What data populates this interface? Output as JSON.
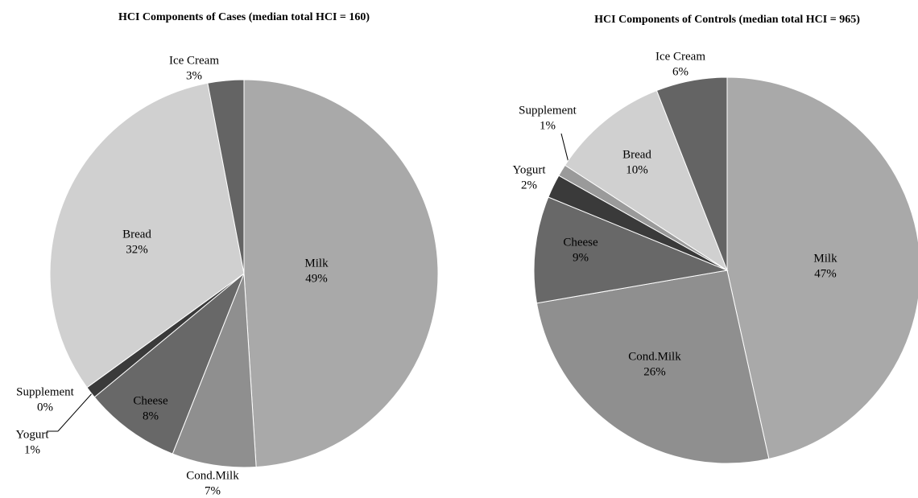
{
  "chart_data": [
    {
      "type": "pie",
      "title": "HCI Components of Cases (median total HCI = 160)",
      "categories": [
        "Milk",
        "Cond.Milk",
        "Cheese",
        "Yogurt",
        "Supplement",
        "Bread",
        "Ice Cream"
      ],
      "values": [
        49,
        7,
        8,
        1,
        0,
        32,
        3
      ],
      "value_labels": [
        "49%",
        "7%",
        "8%",
        "1%",
        "0%",
        "32%",
        "3%"
      ],
      "colors": [
        "#a9a9a9",
        "#8f8f8f",
        "#686868",
        "#3a3a3a",
        "#9a9a9a",
        "#d0d0d0",
        "#646464"
      ]
    },
    {
      "type": "pie",
      "title": "HCI Components of Controls (median total HCI = 965)",
      "categories": [
        "Milk",
        "Cond.Milk",
        "Cheese",
        "Yogurt",
        "Supplement",
        "Bread",
        "Ice Cream"
      ],
      "values": [
        47,
        26,
        9,
        2,
        1,
        10,
        6
      ],
      "value_labels": [
        "47%",
        "26%",
        "9%",
        "2%",
        "1%",
        "10%",
        "6%"
      ],
      "colors": [
        "#a9a9a9",
        "#8f8f8f",
        "#686868",
        "#3a3a3a",
        "#9a9a9a",
        "#d0d0d0",
        "#646464"
      ]
    }
  ]
}
